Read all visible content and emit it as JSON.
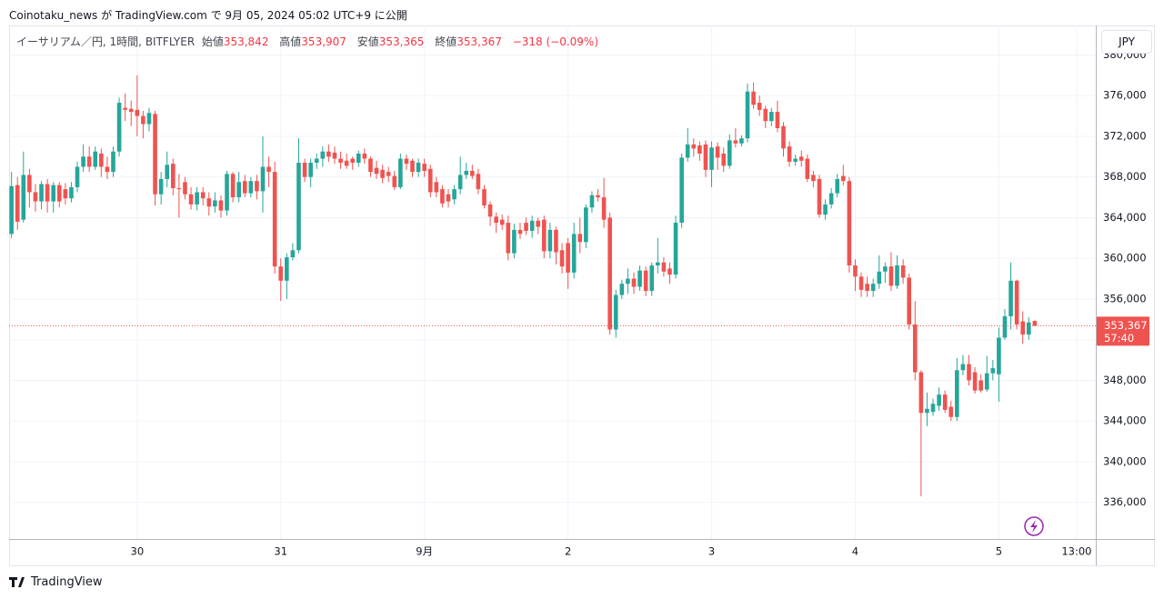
{
  "caption": "Coinotaku_news が TradingView.com で 9月 05, 2024 05:02 UTC+9 に公開",
  "brand": "TradingView",
  "chart_data": {
    "type": "candlestick",
    "header": {
      "symbol": "イーサリアム／円, 1時間, BITFLYER",
      "open_label": "始値",
      "open": "353,842",
      "high_label": "高値",
      "high": "353,907",
      "low_label": "安値",
      "low": "353,365",
      "close_label": "終値",
      "close": "353,367",
      "change": "−318 (−0.09%)"
    },
    "currency": "JPY",
    "up_color": "#26a69a",
    "down_color": "#ef5350",
    "grid": true,
    "xlim": [
      -21.4,
      160.2
    ],
    "ylim": [
      332400,
      382900
    ],
    "xticks": [
      {
        "value": 0,
        "label": "30"
      },
      {
        "value": 24,
        "label": "31"
      },
      {
        "value": 48,
        "label": "9月"
      },
      {
        "value": 72,
        "label": "2"
      },
      {
        "value": 96,
        "label": "3"
      },
      {
        "value": 120,
        "label": "4"
      },
      {
        "value": 144,
        "label": "5"
      },
      {
        "value": 157,
        "label": "13:00"
      }
    ],
    "yticks": [
      {
        "value": 336000,
        "label": "336,000"
      },
      {
        "value": 340000,
        "label": "340,000"
      },
      {
        "value": 344000,
        "label": "344,000"
      },
      {
        "value": 348000,
        "label": "348,000"
      },
      {
        "value": 352000,
        "label": "352,000"
      },
      {
        "value": 356000,
        "label": "356,000"
      },
      {
        "value": 360000,
        "label": "360,000"
      },
      {
        "value": 364000,
        "label": "364,000"
      },
      {
        "value": 368000,
        "label": "368,000"
      },
      {
        "value": 372000,
        "label": "372,000"
      },
      {
        "value": 376000,
        "label": "376,000"
      },
      {
        "value": 380000,
        "label": "380,000"
      }
    ],
    "last_price": {
      "value": 353367,
      "label": "353,367"
    },
    "countdown": "57:40",
    "x": [
      -21,
      -20,
      -19,
      -18,
      -17,
      -16,
      -15,
      -14,
      -13,
      -12,
      -11,
      -10,
      -9,
      -8,
      -7,
      -6,
      -5,
      -4,
      -3,
      -2,
      -1,
      0,
      1,
      2,
      3,
      4,
      5,
      6,
      7,
      8,
      9,
      10,
      11,
      12,
      13,
      14,
      15,
      16,
      17,
      18,
      19,
      20,
      21,
      22,
      23,
      24,
      25,
      26,
      27,
      28,
      29,
      30,
      31,
      32,
      33,
      34,
      35,
      36,
      37,
      38,
      39,
      40,
      41,
      42,
      43,
      44,
      45,
      46,
      47,
      48,
      49,
      50,
      51,
      52,
      53,
      54,
      55,
      56,
      57,
      58,
      59,
      60,
      61,
      62,
      63,
      64,
      65,
      66,
      67,
      68,
      69,
      70,
      71,
      72,
      73,
      74,
      75,
      76,
      77,
      78,
      79,
      80,
      81,
      82,
      83,
      84,
      85,
      86,
      87,
      88,
      89,
      90,
      91,
      92,
      93,
      94,
      95,
      96,
      97,
      98,
      99,
      100,
      101,
      102,
      103,
      104,
      105,
      106,
      107,
      108,
      109,
      110,
      111,
      112,
      113,
      114,
      115,
      116,
      117,
      118,
      119,
      120,
      121,
      122,
      123,
      124,
      125,
      126,
      127,
      128,
      129,
      130,
      131,
      132,
      133,
      134,
      135,
      136,
      137,
      138,
      139,
      140,
      141,
      142,
      143,
      144,
      145,
      146,
      147,
      148,
      149,
      150
    ],
    "ohlc": [
      [
        362400,
        368500,
        362000,
        367100
      ],
      [
        367200,
        368000,
        362800,
        363600
      ],
      [
        363800,
        370500,
        363500,
        368200
      ],
      [
        368200,
        368800,
        365000,
        366500
      ],
      [
        366500,
        367300,
        364600,
        365600
      ],
      [
        365600,
        367600,
        364800,
        367300
      ],
      [
        367300,
        367800,
        364500,
        365600
      ],
      [
        365600,
        367500,
        364500,
        367200
      ],
      [
        367200,
        367500,
        365000,
        365600
      ],
      [
        366800,
        367400,
        365300,
        365900
      ],
      [
        365900,
        367500,
        365500,
        367000
      ],
      [
        367000,
        369500,
        366500,
        369000
      ],
      [
        369000,
        371200,
        368500,
        370000
      ],
      [
        370000,
        371000,
        368500,
        369000
      ],
      [
        369000,
        371000,
        368700,
        370500
      ],
      [
        370300,
        370800,
        368000,
        369000
      ],
      [
        369000,
        370000,
        367800,
        368500
      ],
      [
        368500,
        371000,
        368000,
        370500
      ],
      [
        370500,
        375800,
        370000,
        375300
      ],
      [
        374800,
        376200,
        373500,
        374600
      ],
      [
        374700,
        375500,
        373000,
        374400
      ],
      [
        374600,
        378000,
        372000,
        374000
      ],
      [
        374000,
        374500,
        371800,
        373200
      ],
      [
        373200,
        374800,
        372500,
        374300
      ],
      [
        374200,
        374500,
        365200,
        366300
      ],
      [
        366300,
        368500,
        365300,
        367800
      ],
      [
        367800,
        370500,
        367000,
        369200
      ],
      [
        369300,
        369800,
        366200,
        366900
      ],
      [
        366900,
        368300,
        364000,
        366800
      ],
      [
        367500,
        368000,
        365800,
        366300
      ],
      [
        366300,
        367000,
        364800,
        365300
      ],
      [
        365300,
        367000,
        364700,
        366500
      ],
      [
        366500,
        367000,
        365200,
        365900
      ],
      [
        365900,
        366500,
        364200,
        365100
      ],
      [
        365100,
        366500,
        364500,
        365700
      ],
      [
        365700,
        366200,
        364000,
        364700
      ],
      [
        364700,
        368600,
        364200,
        368300
      ],
      [
        368300,
        368500,
        365500,
        366000
      ],
      [
        366000,
        368500,
        365500,
        367500
      ],
      [
        367600,
        368200,
        366000,
        366400
      ],
      [
        366400,
        368000,
        366000,
        367600
      ],
      [
        367600,
        368200,
        365800,
        366600
      ],
      [
        366600,
        372000,
        364500,
        369000
      ],
      [
        369000,
        370000,
        367000,
        368500
      ],
      [
        368500,
        369500,
        358500,
        359200
      ],
      [
        359200,
        360000,
        355800,
        357800
      ],
      [
        357800,
        360500,
        356000,
        360100
      ],
      [
        360100,
        361500,
        359800,
        360800
      ],
      [
        360800,
        371800,
        360500,
        369400
      ],
      [
        369400,
        369800,
        367500,
        368000
      ],
      [
        368000,
        369800,
        367000,
        369400
      ],
      [
        369400,
        370300,
        368800,
        369800
      ],
      [
        369800,
        371000,
        369000,
        370500
      ],
      [
        370500,
        371200,
        369500,
        370000
      ],
      [
        370400,
        371000,
        369300,
        369800
      ],
      [
        369800,
        370500,
        368800,
        369400
      ],
      [
        369600,
        370300,
        368800,
        369100
      ],
      [
        369800,
        370000,
        368700,
        369400
      ],
      [
        369400,
        370600,
        369000,
        370300
      ],
      [
        370300,
        370800,
        369300,
        369800
      ],
      [
        369800,
        370000,
        368000,
        368500
      ],
      [
        368900,
        369600,
        367800,
        368300
      ],
      [
        368700,
        369200,
        367400,
        367900
      ],
      [
        368500,
        369000,
        367500,
        368100
      ],
      [
        368100,
        368600,
        366700,
        367000
      ],
      [
        367000,
        370300,
        366800,
        369800
      ],
      [
        369800,
        370200,
        368700,
        369300
      ],
      [
        369600,
        369800,
        368000,
        368500
      ],
      [
        368500,
        369800,
        368000,
        369400
      ],
      [
        369300,
        369800,
        368000,
        368600
      ],
      [
        368800,
        369200,
        366000,
        366500
      ],
      [
        367500,
        368000,
        366000,
        366500
      ],
      [
        366800,
        367200,
        365000,
        365400
      ],
      [
        366300,
        366800,
        365000,
        365600
      ],
      [
        365800,
        367200,
        365300,
        366800
      ],
      [
        366800,
        370000,
        366300,
        368200
      ],
      [
        368200,
        369400,
        367800,
        368600
      ],
      [
        368600,
        369200,
        367800,
        368100
      ],
      [
        368300,
        368800,
        366300,
        366800
      ],
      [
        366800,
        367200,
        364900,
        365200
      ],
      [
        365300,
        365600,
        363200,
        364100
      ],
      [
        364100,
        364500,
        362500,
        363500
      ],
      [
        363800,
        364300,
        362800,
        363300
      ],
      [
        363500,
        364200,
        359800,
        360500
      ],
      [
        360500,
        363400,
        360000,
        362800
      ],
      [
        362800,
        363500,
        361900,
        362400
      ],
      [
        363500,
        364000,
        362300,
        362700
      ],
      [
        362700,
        364200,
        362000,
        363700
      ],
      [
        363700,
        364000,
        362400,
        363100
      ],
      [
        363800,
        364200,
        360000,
        360700
      ],
      [
        360700,
        363500,
        360000,
        362800
      ],
      [
        362800,
        363100,
        359400,
        360600
      ],
      [
        360800,
        361500,
        358500,
        359200
      ],
      [
        361500,
        362000,
        357000,
        358600
      ],
      [
        358600,
        363500,
        358000,
        362400
      ],
      [
        362400,
        364000,
        360500,
        361600
      ],
      [
        361600,
        365300,
        361000,
        365000
      ],
      [
        365000,
        366600,
        364500,
        366200
      ],
      [
        366200,
        366800,
        365600,
        366000
      ],
      [
        366000,
        367900,
        363000,
        363800
      ],
      [
        364000,
        364500,
        352500,
        353000
      ],
      [
        353000,
        356900,
        352200,
        356400
      ],
      [
        356400,
        357900,
        356000,
        357500
      ],
      [
        357500,
        359000,
        356500,
        358000
      ],
      [
        358000,
        358600,
        356500,
        357200
      ],
      [
        357200,
        359300,
        356800,
        358800
      ],
      [
        358800,
        359200,
        356300,
        356800
      ],
      [
        356800,
        359600,
        356300,
        359300
      ],
      [
        359300,
        362000,
        358500,
        359600
      ],
      [
        359600,
        360100,
        358200,
        358700
      ],
      [
        359000,
        359600,
        357500,
        358400
      ],
      [
        358400,
        364200,
        358000,
        363500
      ],
      [
        363500,
        370300,
        363000,
        369900
      ],
      [
        369900,
        372800,
        369500,
        371200
      ],
      [
        371200,
        371800,
        370000,
        370800
      ],
      [
        371100,
        371500,
        369600,
        370300
      ],
      [
        371200,
        371600,
        368000,
        368700
      ],
      [
        368700,
        371500,
        367000,
        370900
      ],
      [
        371000,
        371400,
        368700,
        369900
      ],
      [
        370300,
        370900,
        368500,
        369100
      ],
      [
        369100,
        372200,
        368800,
        371600
      ],
      [
        371600,
        372800,
        370900,
        371300
      ],
      [
        371300,
        372100,
        371000,
        371800
      ],
      [
        371800,
        377200,
        371400,
        376400
      ],
      [
        376400,
        377300,
        374700,
        375100
      ],
      [
        375300,
        376000,
        374000,
        374600
      ],
      [
        374700,
        375000,
        372800,
        373500
      ],
      [
        373500,
        374800,
        373000,
        374400
      ],
      [
        374400,
        375500,
        372400,
        372800
      ],
      [
        373000,
        373400,
        370000,
        370800
      ],
      [
        371000,
        371500,
        369000,
        369500
      ],
      [
        369500,
        370200,
        369100,
        369800
      ],
      [
        370000,
        370600,
        369000,
        369600
      ],
      [
        369800,
        370200,
        367500,
        367800
      ],
      [
        368200,
        368600,
        367000,
        367600
      ],
      [
        367800,
        368200,
        364000,
        364300
      ],
      [
        364300,
        365800,
        363800,
        365300
      ],
      [
        365300,
        366900,
        364900,
        366400
      ],
      [
        366400,
        368300,
        366000,
        367800
      ],
      [
        368100,
        369200,
        367200,
        367600
      ],
      [
        367600,
        368000,
        358600,
        359300
      ],
      [
        359300,
        359900,
        356800,
        358200
      ],
      [
        358200,
        358600,
        356200,
        356900
      ],
      [
        357500,
        358200,
        356200,
        356800
      ],
      [
        356800,
        358000,
        356200,
        357500
      ],
      [
        357500,
        360300,
        357000,
        358700
      ],
      [
        358700,
        359600,
        357600,
        359200
      ],
      [
        359200,
        360600,
        356800,
        357300
      ],
      [
        357300,
        360300,
        357000,
        359300
      ],
      [
        359300,
        359900,
        357500,
        358100
      ],
      [
        358100,
        358500,
        353000,
        353500
      ],
      [
        353500,
        355800,
        348000,
        348800
      ],
      [
        348800,
        349000,
        336600,
        344800
      ],
      [
        344800,
        346800,
        343500,
        345200
      ],
      [
        344900,
        346200,
        344500,
        345700
      ],
      [
        345500,
        347300,
        345000,
        346600
      ],
      [
        346600,
        347000,
        344800,
        345100
      ],
      [
        345400,
        346000,
        344000,
        344400
      ],
      [
        344400,
        350200,
        344000,
        349000
      ],
      [
        349000,
        350500,
        348500,
        349600
      ],
      [
        349600,
        350500,
        347500,
        348000
      ],
      [
        348800,
        349300,
        346700,
        347000
      ],
      [
        348000,
        348600,
        346800,
        347000
      ],
      [
        347100,
        350400,
        346900,
        348700
      ],
      [
        348700,
        350000,
        348000,
        349200
      ],
      [
        348600,
        353200,
        345900,
        352200
      ],
      [
        352200,
        355000,
        352000,
        354300
      ],
      [
        354300,
        359600,
        353000,
        357800
      ],
      [
        357800,
        357900,
        353000,
        353500
      ],
      [
        353800,
        354800,
        351600,
        352500
      ],
      [
        352500,
        354200,
        352000,
        353700
      ],
      [
        353842,
        353907,
        353365,
        353367
      ]
    ]
  }
}
